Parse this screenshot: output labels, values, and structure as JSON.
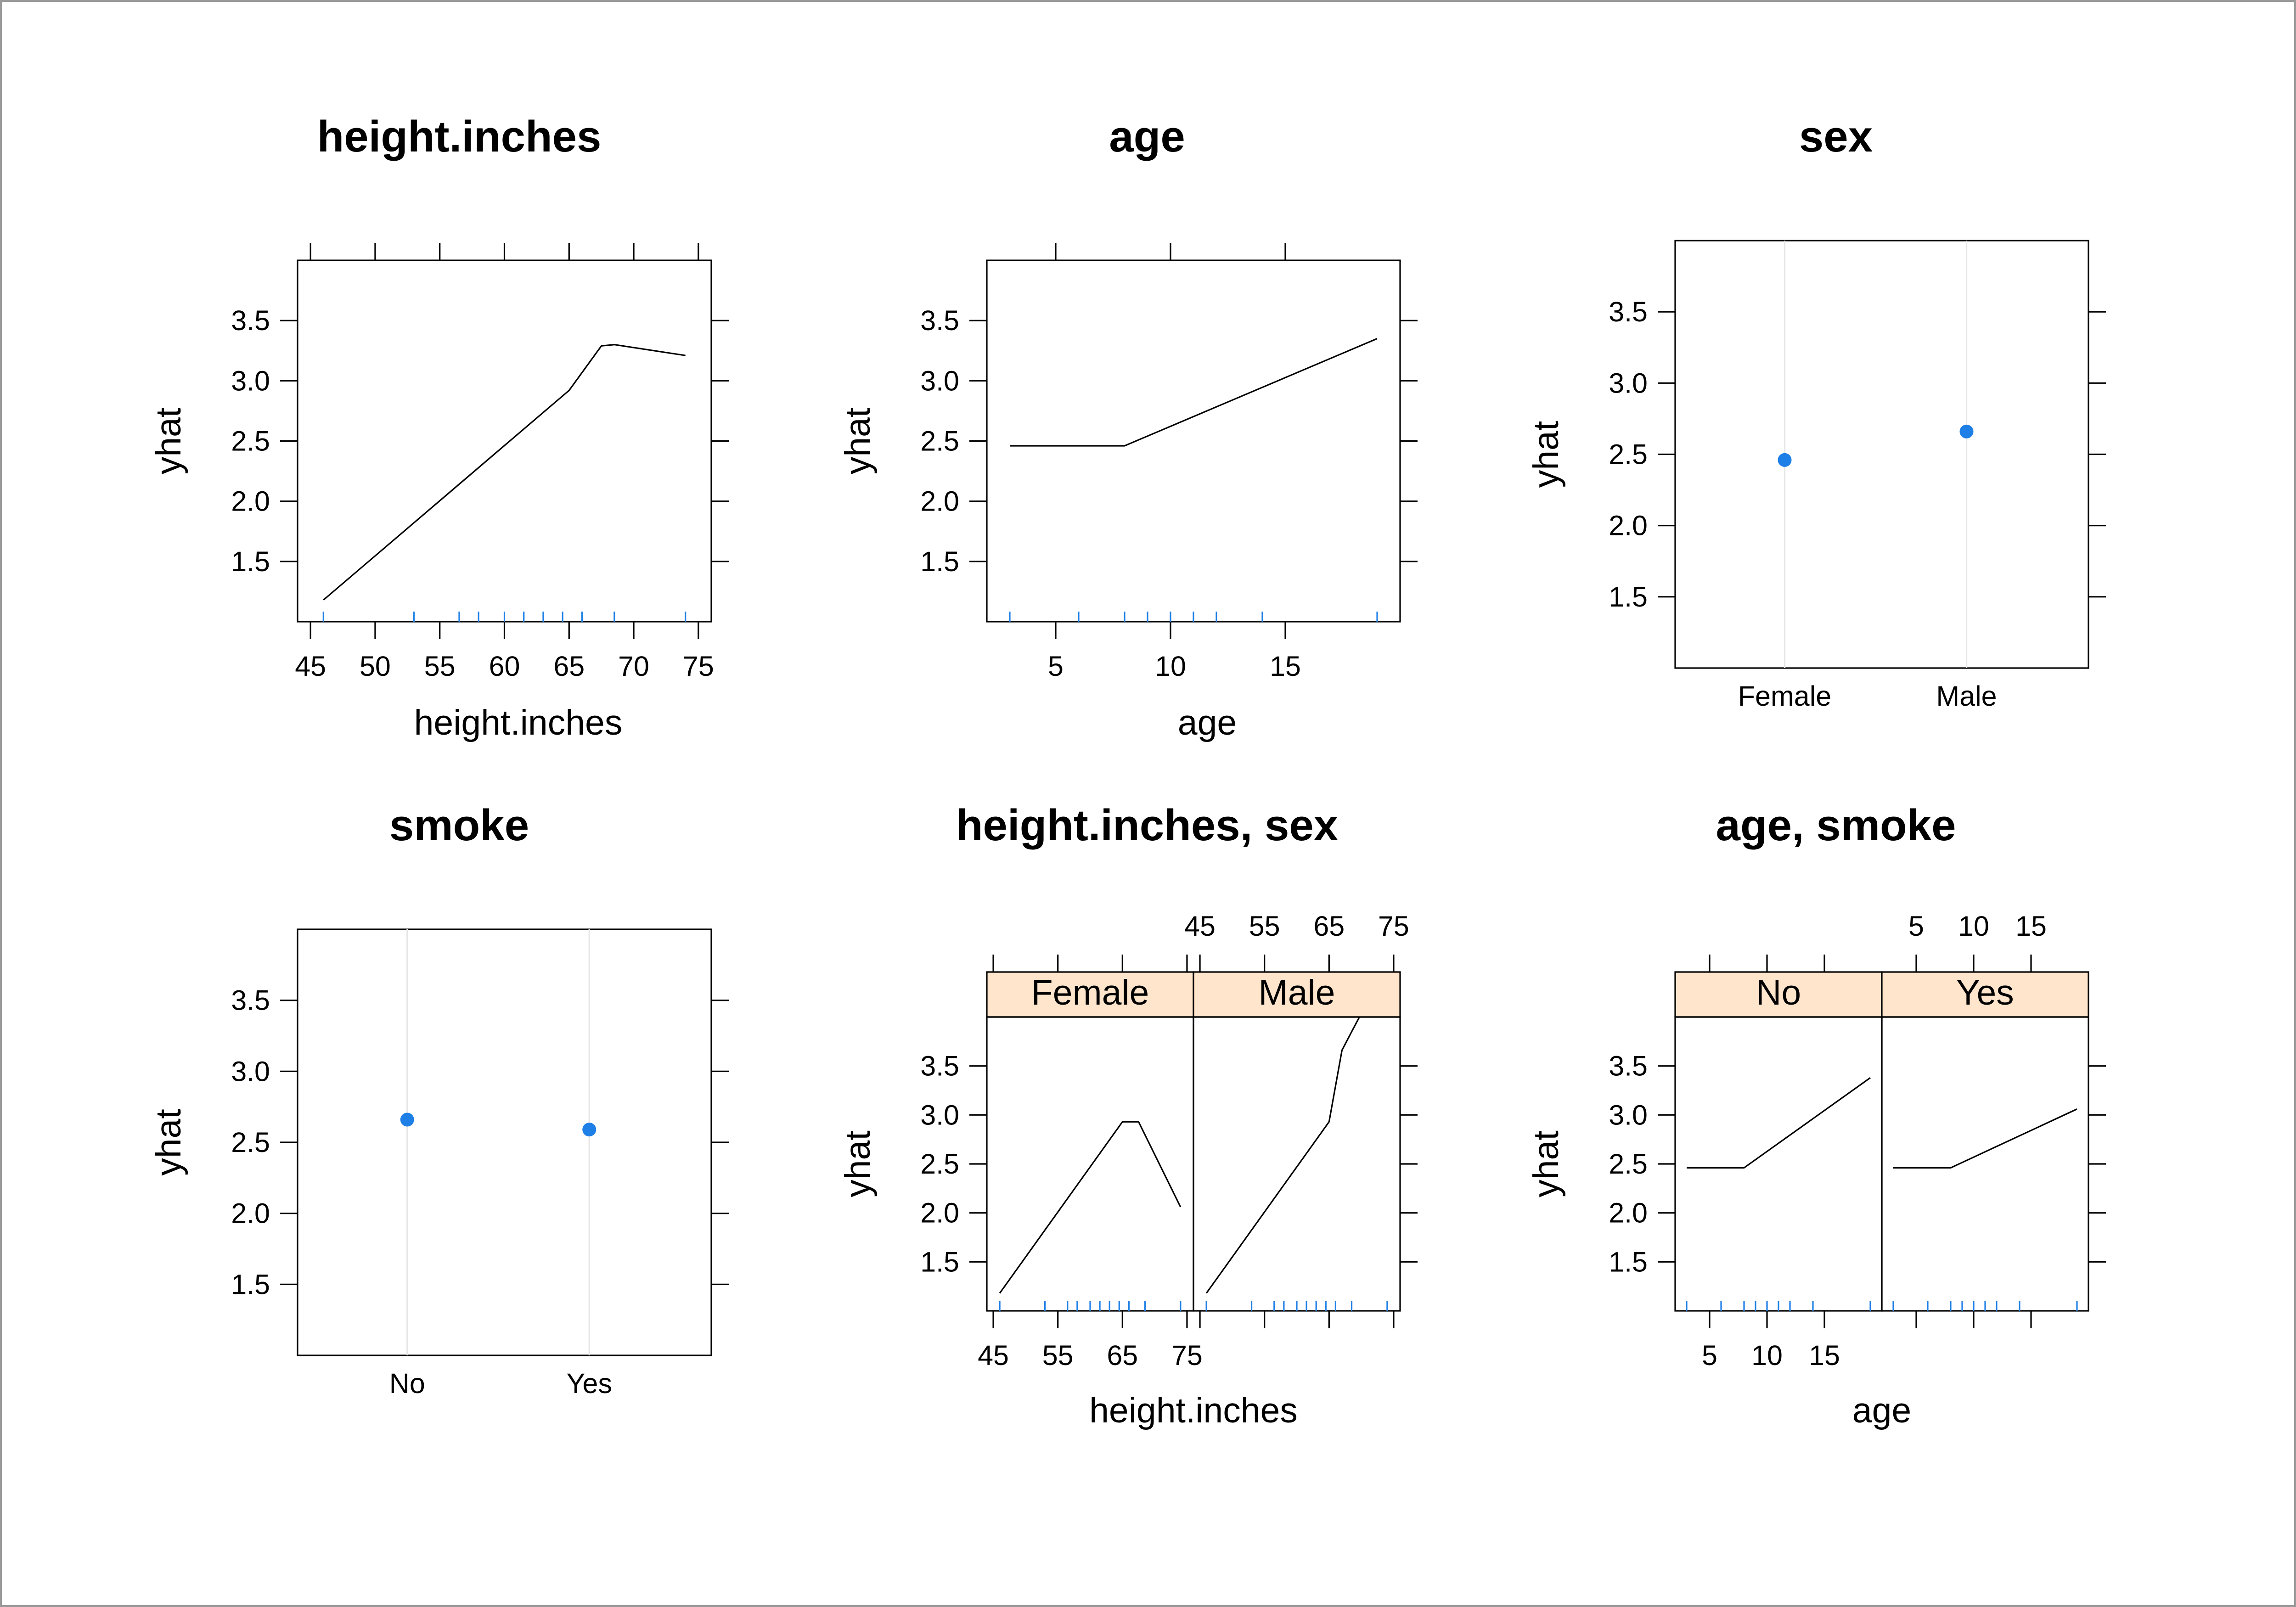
{
  "chart_data": [
    {
      "type": "line",
      "title": "height.inches",
      "xlabel": "height.inches",
      "ylabel": "yhat",
      "xlim": [
        44,
        76
      ],
      "ylim": [
        1,
        4
      ],
      "xticks": [
        45,
        50,
        55,
        60,
        65,
        70,
        75
      ],
      "yticks": [
        1.5,
        2.0,
        2.5,
        3.0,
        3.5
      ],
      "series": [
        {
          "x": [
            46,
            65,
            67.5,
            68.5,
            74
          ],
          "y": [
            1.18,
            2.92,
            3.29,
            3.3,
            3.21
          ]
        }
      ],
      "rug": [
        46,
        53,
        56.5,
        58,
        60,
        61.5,
        63,
        64.5,
        66,
        68.5,
        74
      ]
    },
    {
      "type": "line",
      "title": "age",
      "xlabel": "age",
      "ylabel": "yhat",
      "xlim": [
        2,
        20
      ],
      "ylim": [
        1,
        4
      ],
      "xticks": [
        5,
        10,
        15
      ],
      "yticks": [
        1.5,
        2.0,
        2.5,
        3.0,
        3.5
      ],
      "series": [
        {
          "x": [
            3,
            8,
            19
          ],
          "y": [
            2.46,
            2.46,
            3.35
          ]
        }
      ],
      "rug": [
        3,
        6,
        8,
        9,
        10,
        11,
        12,
        14,
        19
      ]
    },
    {
      "type": "scatter",
      "title": "sex",
      "xlabel": "",
      "ylabel": "yhat",
      "ylim": [
        1,
        4
      ],
      "yticks": [
        1.5,
        2.0,
        2.5,
        3.0,
        3.5
      ],
      "categories": [
        "Female",
        "Male"
      ],
      "values": [
        2.46,
        2.66
      ]
    },
    {
      "type": "scatter",
      "title": "smoke",
      "xlabel": "",
      "ylabel": "yhat",
      "ylim": [
        1,
        4
      ],
      "yticks": [
        1.5,
        2.0,
        2.5,
        3.0,
        3.5
      ],
      "categories": [
        "No",
        "Yes"
      ],
      "values": [
        2.66,
        2.59
      ]
    },
    {
      "type": "line",
      "title": "height.inches, sex",
      "xlabel": "height.inches",
      "ylabel": "yhat",
      "xlim": [
        44,
        76
      ],
      "ylim": [
        1,
        4
      ],
      "xticks": [
        45,
        55,
        65,
        75
      ],
      "yticks": [
        1.5,
        2.0,
        2.5,
        3.0,
        3.5
      ],
      "panels": [
        {
          "strip": "Female",
          "x": [
            46,
            65,
            67.5,
            74
          ],
          "y": [
            1.18,
            2.93,
            2.93,
            2.06
          ]
        },
        {
          "strip": "Male",
          "x": [
            46,
            65,
            67,
            68.5,
            70.5
          ],
          "y": [
            1.18,
            2.93,
            3.66,
            3.85,
            4.1
          ]
        }
      ],
      "rug": [
        46,
        53,
        56.5,
        58,
        60,
        61.5,
        63,
        64.5,
        66,
        68.5,
        74
      ]
    },
    {
      "type": "line",
      "title": "age, smoke",
      "xlabel": "age",
      "ylabel": "yhat",
      "xlim": [
        2,
        20
      ],
      "ylim": [
        1,
        4
      ],
      "xticks": [
        5,
        10,
        15
      ],
      "yticks": [
        1.5,
        2.0,
        2.5,
        3.0,
        3.5
      ],
      "panels": [
        {
          "strip": "No",
          "x": [
            3,
            8,
            19
          ],
          "y": [
            2.46,
            2.46,
            3.38
          ]
        },
        {
          "strip": "Yes",
          "x": [
            3,
            8,
            19
          ],
          "y": [
            2.46,
            2.46,
            3.06
          ]
        }
      ],
      "rug": [
        3,
        6,
        8,
        9,
        10,
        11,
        12,
        14,
        19
      ]
    }
  ]
}
